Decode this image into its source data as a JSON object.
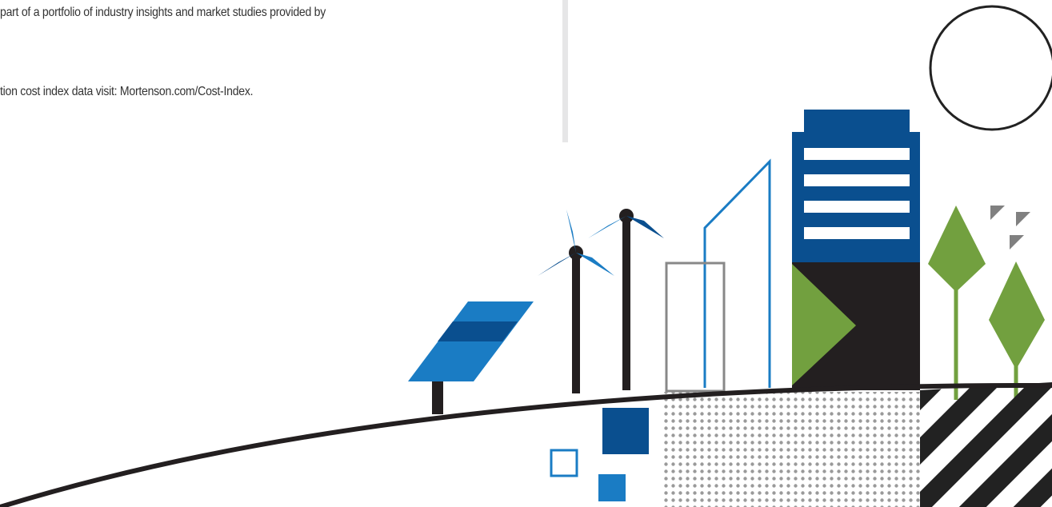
{
  "paragraphs": [
    "part of a portfolio of industry insights and market studies provided by",
    "tion cost index data visit: Mortenson.com/Cost-Index."
  ]
}
